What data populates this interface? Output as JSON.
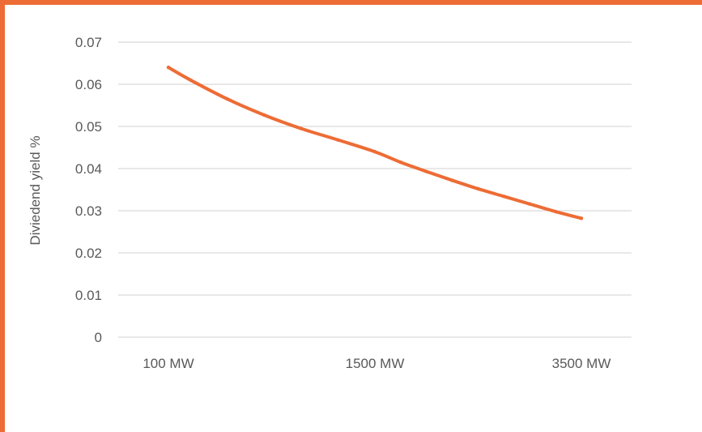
{
  "colors": {
    "accent": "#ED6C35",
    "gridline": "#D9D9D9",
    "text": "#595959"
  },
  "chart_data": {
    "type": "line",
    "title": "",
    "xlabel": "",
    "ylabel": "Diviedend yield %",
    "x_tick_labels": [
      "100 MW",
      "1500 MW",
      "3500 MW"
    ],
    "ylim": [
      0,
      0.07
    ],
    "y_ticks": [
      0,
      0.01,
      0.02,
      0.03,
      0.04,
      0.05,
      0.06,
      0.07
    ],
    "y_tick_labels": [
      "0",
      "0.01",
      "0.02",
      "0.03",
      "0.04",
      "0.05",
      "0.06",
      "0.07"
    ],
    "grid": true,
    "legend": "none",
    "series": [
      {
        "color": "#ED6C35",
        "x": [
          100,
          250,
          500,
          750,
          1000,
          1250,
          1500,
          1750,
          2000,
          2250,
          2500,
          2750,
          3000,
          3250,
          3500
        ],
        "values": [
          0.064,
          0.061,
          0.0565,
          0.0527,
          0.0495,
          0.0468,
          0.044,
          0.0415,
          0.0393,
          0.0372,
          0.0352,
          0.0334,
          0.0316,
          0.0298,
          0.0282
        ]
      }
    ]
  }
}
